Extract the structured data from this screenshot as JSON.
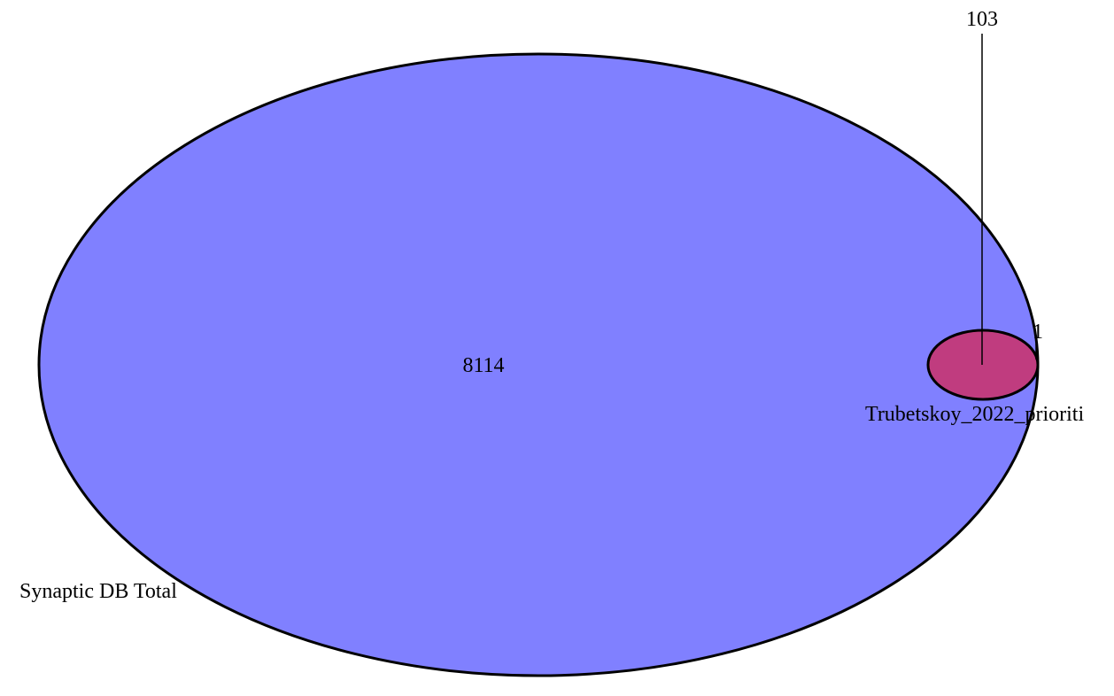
{
  "diagram": {
    "type": "venn",
    "sets": [
      {
        "label": "Synaptic DB Total",
        "only_count": "8114",
        "fill": "#8080ff",
        "stroke": "#000000"
      },
      {
        "label": "Trubetskoy_2022_prioriti",
        "only_count": "1",
        "fill": "#c03c7f",
        "stroke": "#000000"
      }
    ],
    "intersection_count": "103"
  }
}
